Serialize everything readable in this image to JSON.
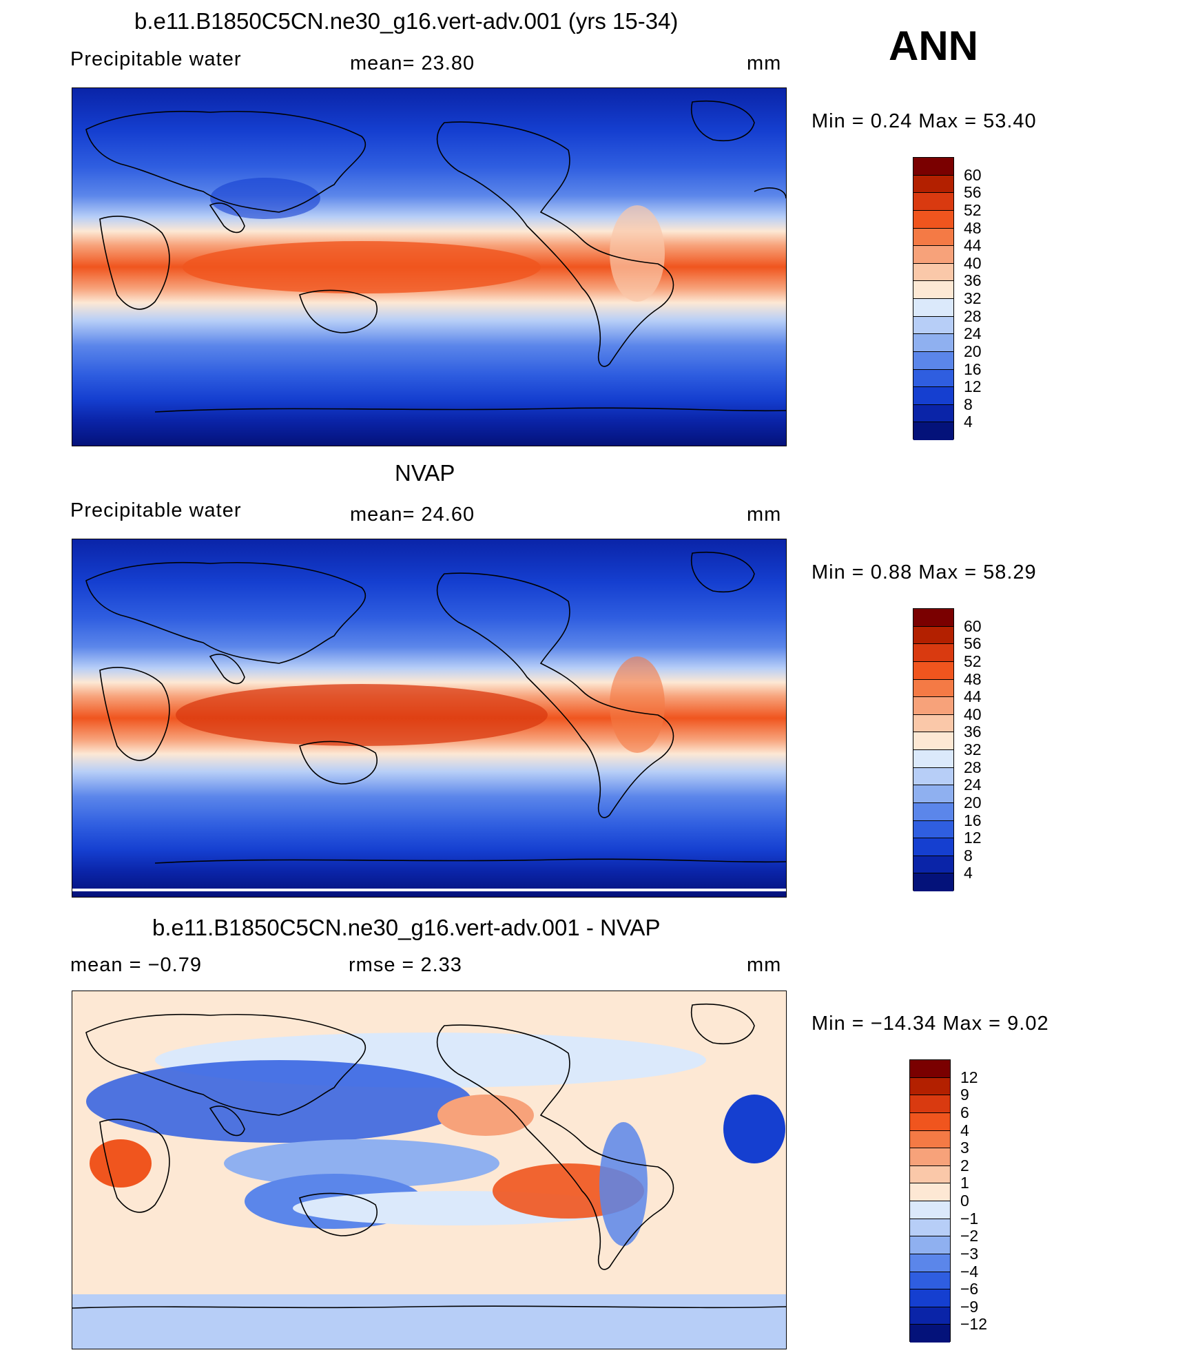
{
  "season": "ANN",
  "units": "mm",
  "panels": [
    {
      "title": "b.e11.B1850C5CN.ne30_g16.vert-adv.001 (yrs 15-34)",
      "variable": "Precipitable water",
      "stat_text": "mean=   23.80",
      "stat2_text": "",
      "minmax_text": "Min =    0.24  Max =   53.40",
      "colorbar_labels": [
        "60",
        "56",
        "52",
        "48",
        "44",
        "40",
        "36",
        "32",
        "28",
        "24",
        "20",
        "16",
        "12",
        "8",
        "4"
      ]
    },
    {
      "title": "NVAP",
      "variable": "Precipitable water",
      "stat_text": "mean=   24.60",
      "stat2_text": "",
      "minmax_text": "Min =    0.88  Max =   58.29",
      "colorbar_labels": [
        "60",
        "56",
        "52",
        "48",
        "44",
        "40",
        "36",
        "32",
        "28",
        "24",
        "20",
        "16",
        "12",
        "8",
        "4"
      ]
    },
    {
      "title": "b.e11.B1850C5CN.ne30_g16.vert-adv.001 - NVAP",
      "variable": "",
      "stat_text": "mean =   −0.79",
      "stat2_text": "rmse =    2.33",
      "minmax_text": "Min = −14.34  Max =    9.02",
      "colorbar_labels": [
        "12",
        "9",
        "6",
        "4",
        "3",
        "2",
        "1",
        "0",
        "−1",
        "−2",
        "−3",
        "−4",
        "−6",
        "−9",
        "−12"
      ]
    }
  ],
  "colors": {
    "abs_palette": [
      "#7a0000",
      "#b32000",
      "#d93a10",
      "#f0551e",
      "#f47a45",
      "#f7a27a",
      "#fac8a9",
      "#fde8d4",
      "#dbe9fb",
      "#b7cef7",
      "#8fb0f0",
      "#5b86ea",
      "#2f5ee0",
      "#153fd0",
      "#0a24a8",
      "#04127a"
    ],
    "diff_palette": [
      "#7a0000",
      "#b32000",
      "#d93a10",
      "#f0551e",
      "#f47a45",
      "#f7a27a",
      "#fac8a9",
      "#fde8d4",
      "#dbe9fb",
      "#b7cef7",
      "#8fb0f0",
      "#5b86ea",
      "#2f5ee0",
      "#153fd0",
      "#0a24a8",
      "#04127a"
    ]
  }
}
